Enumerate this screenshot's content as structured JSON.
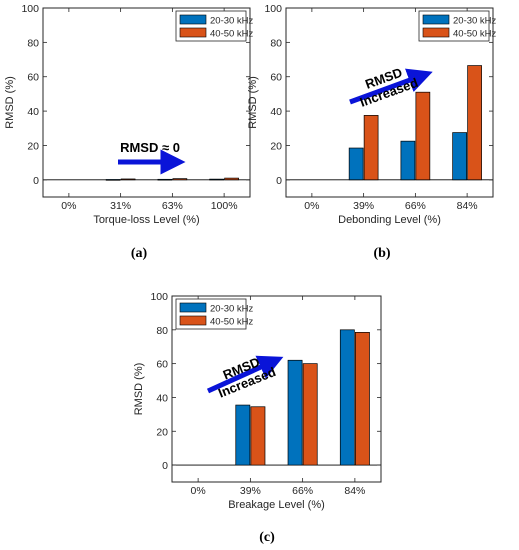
{
  "colors": {
    "series1": "#0072BD",
    "series2": "#D95319",
    "arrow": "#0a14d8",
    "axis": "#000000"
  },
  "captions": [
    "(a)",
    "(b)",
    "(c)"
  ],
  "chart_data": [
    {
      "type": "bar",
      "ylabel": "RMSD (%)",
      "xlabel": "Torque-loss Level (%)",
      "categories": [
        "0%",
        "31%",
        "63%",
        "100%"
      ],
      "ylim": [
        -10,
        100
      ],
      "yticks": [
        0,
        20,
        40,
        60,
        80,
        100
      ],
      "legend_position": "top-right",
      "series": [
        {
          "name": "20-30 kHz",
          "values": [
            0,
            0.2,
            0.3,
            0.4
          ]
        },
        {
          "name": "40-50 kHz",
          "values": [
            0,
            0.5,
            0.7,
            1.0
          ]
        }
      ],
      "annotation": {
        "text": "RMSD ≈ 0",
        "arrow": "horizontal"
      }
    },
    {
      "type": "bar",
      "ylabel": "RMSD (%)",
      "xlabel": "Debonding Level (%)",
      "categories": [
        "0%",
        "39%",
        "66%",
        "84%"
      ],
      "ylim": [
        -10,
        100
      ],
      "yticks": [
        0,
        20,
        40,
        60,
        80,
        100
      ],
      "legend_position": "top-right",
      "series": [
        {
          "name": "20-30 kHz",
          "values": [
            0,
            18.5,
            22.5,
            27.5
          ]
        },
        {
          "name": "40-50 kHz",
          "values": [
            0,
            37.5,
            51,
            66.5
          ]
        }
      ],
      "annotation": {
        "text_lines": [
          "RMSD",
          "Increased"
        ],
        "arrow": "diagonal"
      }
    },
    {
      "type": "bar",
      "ylabel": "RMSD (%)",
      "xlabel": "Breakage Level (%)",
      "categories": [
        "0%",
        "39%",
        "66%",
        "84%"
      ],
      "ylim": [
        -10,
        100
      ],
      "yticks": [
        0,
        20,
        40,
        60,
        80,
        100
      ],
      "legend_position": "top-left",
      "series": [
        {
          "name": "20-30 kHz",
          "values": [
            0,
            35.5,
            62,
            80
          ]
        },
        {
          "name": "40-50 kHz",
          "values": [
            0,
            34.5,
            60,
            78.5
          ]
        }
      ],
      "annotation": {
        "text_lines": [
          "RMSD",
          "Increased"
        ],
        "arrow": "diagonal"
      }
    }
  ]
}
